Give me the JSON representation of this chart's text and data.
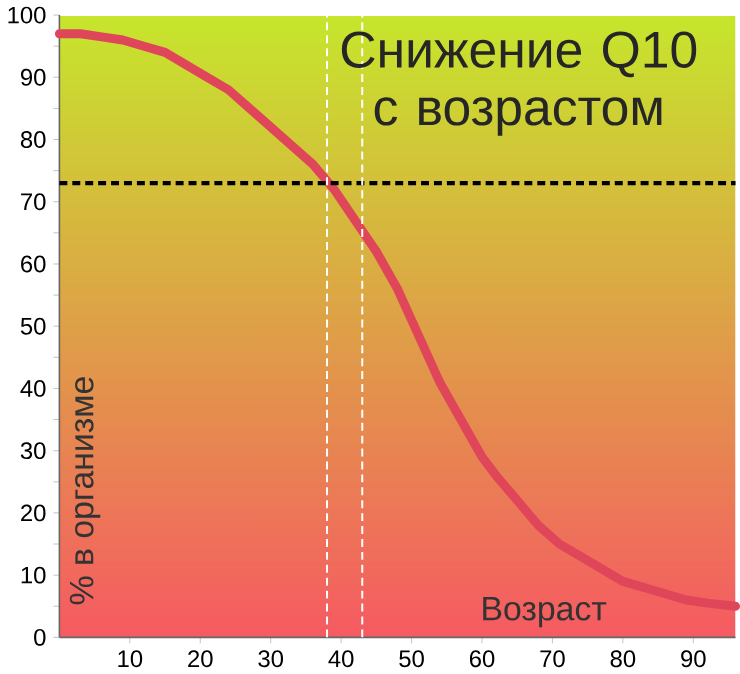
{
  "chart_data": {
    "type": "line",
    "title": "Снижение Q10\nс возрастом",
    "xlabel": "Возраст",
    "ylabel": "% в организме",
    "x": [
      0,
      3,
      6,
      9,
      12,
      15,
      18,
      21,
      24,
      27,
      30,
      33,
      36,
      39,
      42,
      45,
      48,
      50,
      52,
      54,
      56,
      58,
      60,
      62,
      65,
      68,
      71,
      74,
      77,
      80,
      83,
      86,
      89,
      92,
      96
    ],
    "series": [
      {
        "color": "#e0465a",
        "values": [
          97,
          97,
          96.5,
          96,
          95,
          94,
          92,
          90,
          88,
          85,
          82,
          79,
          76,
          72,
          67,
          62,
          56,
          51,
          46,
          41,
          37,
          33,
          29,
          26,
          22,
          18,
          15,
          13,
          11,
          9,
          8,
          7,
          6,
          5.5,
          5
        ]
      }
    ],
    "xlim": [
      0,
      96
    ],
    "ylim": [
      0,
      100
    ],
    "xticks": [
      10,
      20,
      30,
      40,
      50,
      60,
      70,
      80,
      90
    ],
    "yticks": [
      0,
      10,
      20,
      30,
      40,
      50,
      60,
      70,
      80,
      90,
      100
    ],
    "ref_lines": [
      {
        "axis": "y",
        "value": 73,
        "color": "#000000",
        "line_style": "dashed"
      },
      {
        "axis": "x",
        "value": 38,
        "color": "#ffffff",
        "line_style": "dashed"
      },
      {
        "axis": "x",
        "value": 43,
        "color": "#ffffff",
        "line_style": "dashed"
      }
    ],
    "grid": false,
    "marker": "none",
    "line_style": "solid"
  }
}
